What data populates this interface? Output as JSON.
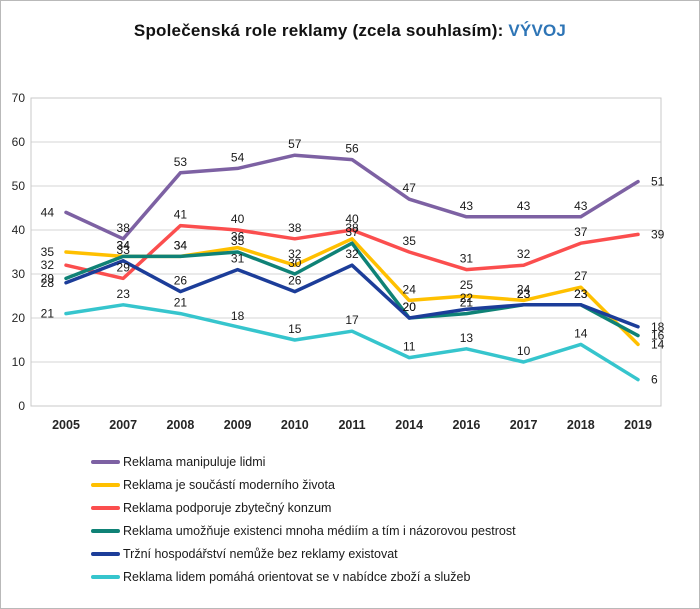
{
  "title": {
    "main": "Společenská role reklamy (zcela souhlasím): ",
    "highlight": "VÝVOJ",
    "highlight_color": "#2E75B6"
  },
  "chart_data": {
    "type": "line",
    "title": "Společenská role reklamy (zcela souhlasím): VÝVOJ",
    "categories": [
      "2005",
      "2007",
      "2008",
      "2009",
      "2010",
      "2011",
      "2014",
      "2016",
      "2017",
      "2018",
      "2019"
    ],
    "ylim": [
      0,
      70
    ],
    "ytick_step": 10,
    "yticks": [
      0,
      10,
      20,
      30,
      40,
      50,
      60,
      70
    ],
    "grid": true,
    "legend_position": "bottom-left",
    "data_labels": true,
    "series": [
      {
        "name": "Reklama manipuluje lidmi",
        "color": "#7D61A3",
        "values": [
          44,
          38,
          53,
          54,
          57,
          56,
          47,
          43,
          43,
          43,
          51
        ]
      },
      {
        "name": "Reklama je součástí moderního života",
        "color": "#FFC000",
        "values": [
          35,
          34,
          34,
          36,
          32,
          38,
          24,
          25,
          24,
          27,
          14
        ]
      },
      {
        "name": "Reklama podporuje zbytečný konzum",
        "color": "#FB4E4E",
        "values": [
          32,
          29,
          41,
          40,
          38,
          40,
          35,
          31,
          32,
          37,
          39
        ]
      },
      {
        "name": "Reklama umožňuje existenci mnoha médiím a tím i názorovou pestrost",
        "color": "#0F8276",
        "values": [
          29,
          34,
          34,
          35,
          30,
          37,
          20,
          21,
          23,
          23,
          16
        ]
      },
      {
        "name": "Tržní hospodářství nemůže bez reklamy existovat",
        "color": "#1C3D99",
        "values": [
          28,
          33,
          26,
          31,
          26,
          32,
          20,
          22,
          23,
          23,
          18
        ]
      },
      {
        "name": "Reklama lidem pomáhá orientovat se v nabídce zboží a služeb",
        "color": "#36C5CD",
        "values": [
          21,
          23,
          21,
          18,
          15,
          17,
          11,
          13,
          10,
          14,
          6
        ]
      }
    ],
    "colors": {
      "grid": "#D6D6D6",
      "plot_border": "#C9C9C9",
      "axis_text": "#262626",
      "label_text": "#1a1a1a"
    }
  }
}
